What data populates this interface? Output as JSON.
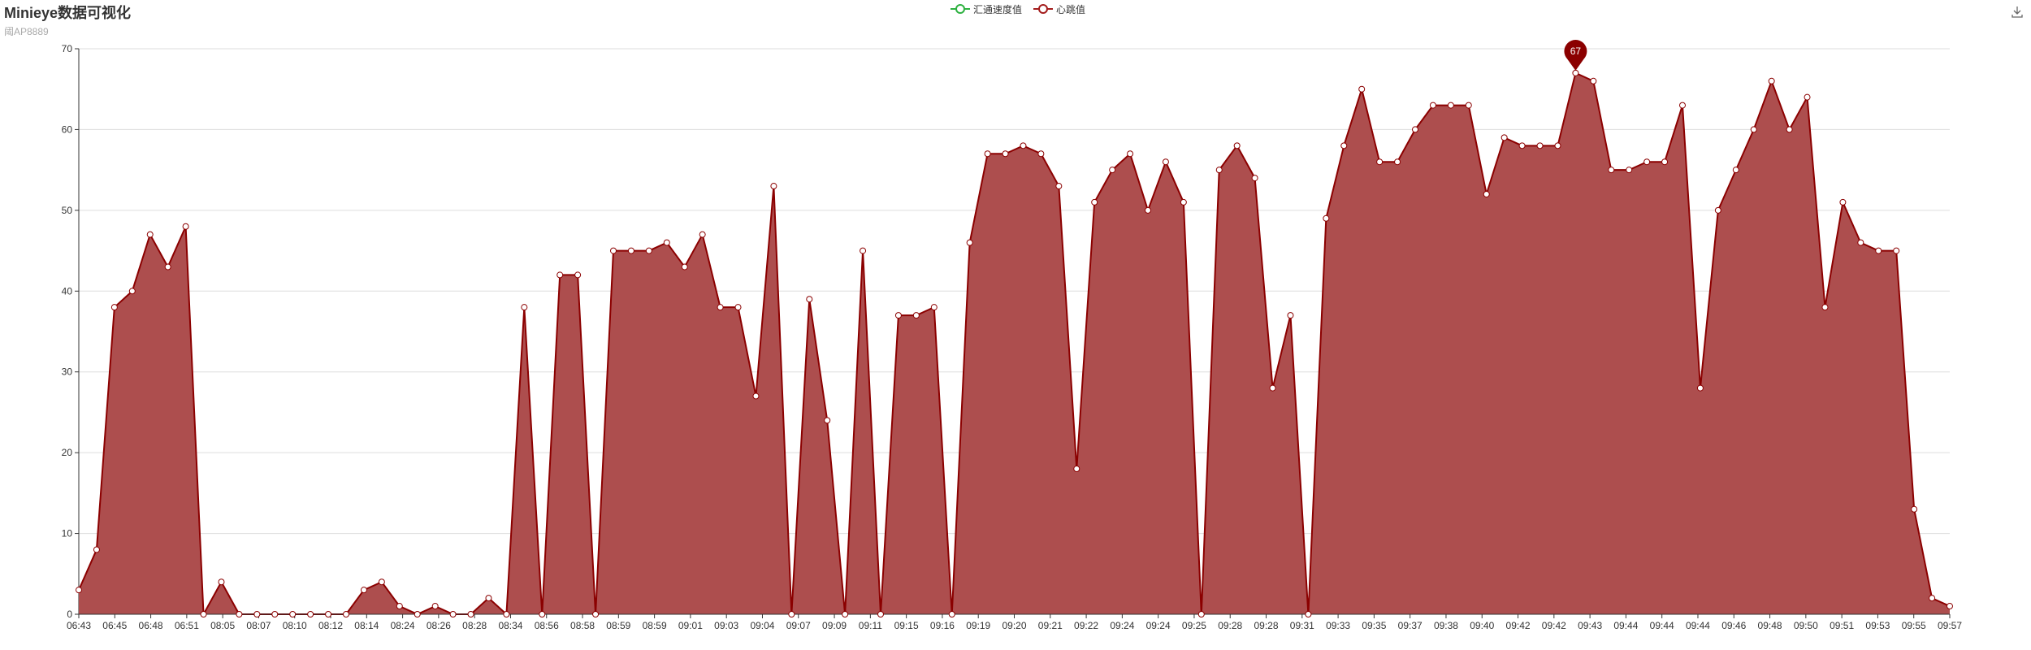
{
  "title": "Minieye数据可视化",
  "subtitle": "阈AP8889",
  "toolbox": {
    "icon": "download-icon"
  },
  "colors": {
    "area": "#ad4e4e",
    "line": "#8b0000",
    "speed_series": "#2db140",
    "heartbeat_series": "#a31c1c",
    "grid": "#dddddd",
    "axis": "#333333"
  },
  "chart_data": {
    "type": "area",
    "title": "Minieye数据可视化",
    "subtitle": "阈AP8889",
    "legend_position": "top-center",
    "legend": [
      "汇通速度值",
      "心跳值"
    ],
    "grid": true,
    "ylim": [
      0,
      70
    ],
    "yticks": [
      0,
      10,
      20,
      30,
      40,
      50,
      60,
      70
    ],
    "x_tick_labels": [
      "06:43",
      "06:45",
      "06:48",
      "06:51",
      "08:05",
      "08:07",
      "08:10",
      "08:12",
      "08:14",
      "08:24",
      "08:26",
      "08:28",
      "08:34",
      "08:56",
      "08:58",
      "08:59",
      "08:59",
      "09:01",
      "09:03",
      "09:04",
      "09:07",
      "09:09",
      "09:11",
      "09:15",
      "09:16",
      "09:19",
      "09:20",
      "09:21",
      "09:22",
      "09:24",
      "09:24",
      "09:25",
      "09:28",
      "09:28",
      "09:31",
      "09:33",
      "09:35",
      "09:37",
      "09:38",
      "09:40",
      "09:42",
      "09:42",
      "09:43",
      "09:44",
      "09:44",
      "09:44",
      "09:46",
      "09:48",
      "09:50",
      "09:51",
      "09:53",
      "09:55",
      "09:57"
    ],
    "series": [
      {
        "name": "汇通速度值",
        "values": []
      },
      {
        "name": "心跳值",
        "values": [
          3,
          8,
          38,
          40,
          47,
          43,
          48,
          0,
          4,
          0,
          0,
          0,
          0,
          0,
          0,
          0,
          3,
          4,
          1,
          0,
          1,
          0,
          0,
          2,
          0,
          38,
          0,
          42,
          42,
          0,
          45,
          45,
          45,
          46,
          43,
          47,
          38,
          38,
          27,
          53,
          0,
          39,
          24,
          0,
          45,
          0,
          37,
          37,
          38,
          0,
          46,
          57,
          57,
          58,
          57,
          53,
          18,
          51,
          55,
          57,
          50,
          56,
          51,
          0,
          55,
          58,
          54,
          28,
          37,
          0,
          49,
          58,
          65,
          56,
          56,
          60,
          63,
          63,
          63,
          52,
          59,
          58,
          58,
          58,
          67,
          66,
          55,
          55,
          56,
          56,
          63,
          28,
          50,
          55,
          60,
          66,
          60,
          64,
          38,
          51,
          46,
          45,
          45,
          13,
          2,
          1
        ]
      }
    ],
    "markpoint": {
      "series": "心跳值",
      "type": "max",
      "value": 67
    }
  }
}
